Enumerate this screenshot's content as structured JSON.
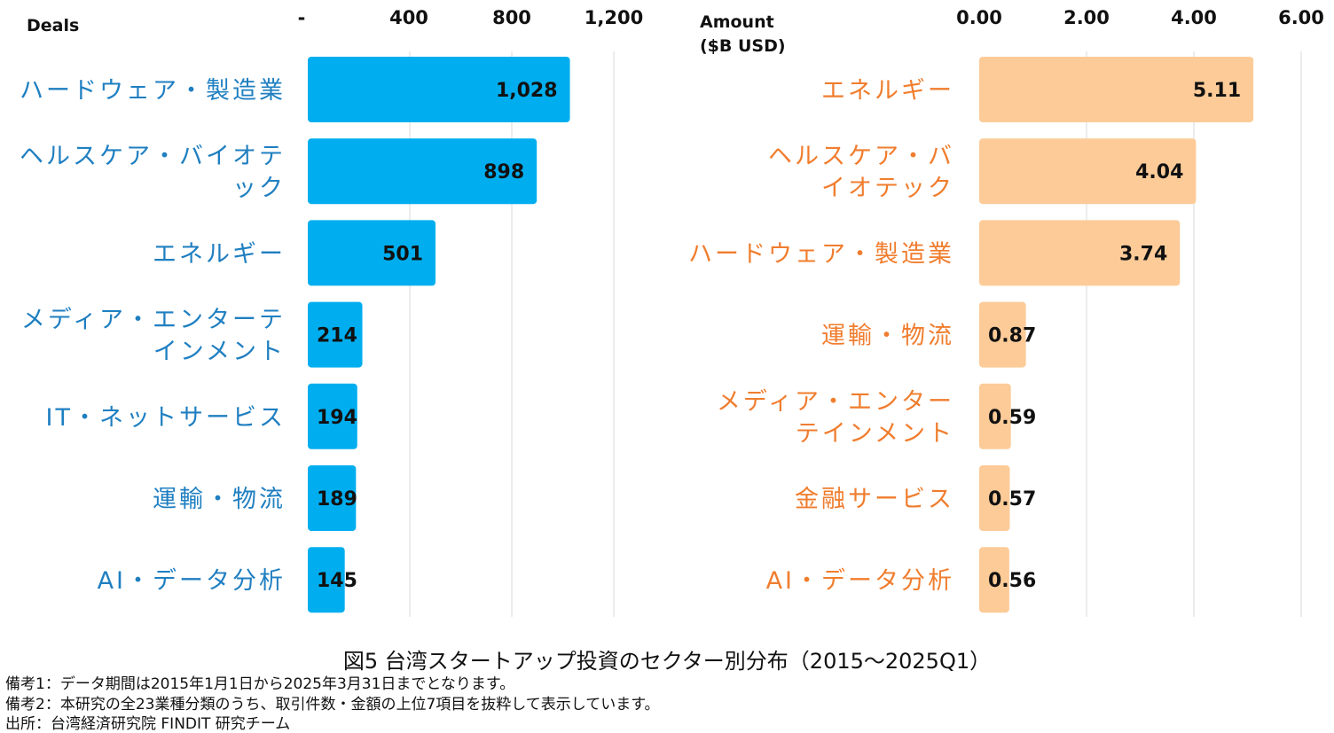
{
  "chart_data": [
    {
      "type": "bar",
      "orientation": "horizontal",
      "axis_title": "Deals",
      "x_ticks": [
        "-",
        "400",
        "800",
        "1,200"
      ],
      "xlim": [
        0,
        1200
      ],
      "categories": [
        [
          "ハードウェア・製造業"
        ],
        [
          "ヘルスケア・バイオテ",
          "ック"
        ],
        [
          "エネルギー"
        ],
        [
          "メディア・エンターテ",
          "インメント"
        ],
        [
          "IT・ネットサービス"
        ],
        [
          "運輸・物流"
        ],
        [
          "AI・データ分析"
        ]
      ],
      "values": [
        1028,
        898,
        501,
        214,
        194,
        189,
        145
      ],
      "value_labels": [
        "1,028",
        "898",
        "501",
        "214",
        "194",
        "189",
        "145"
      ],
      "bar_color": "#00aeef",
      "label_color": "#1f7fc1",
      "grid": true
    },
    {
      "type": "bar",
      "orientation": "horizontal",
      "axis_title": [
        "Amount",
        "($B USD)"
      ],
      "x_ticks": [
        "0.00",
        "2.00",
        "4.00",
        "6.00"
      ],
      "xlim": [
        0,
        6
      ],
      "categories": [
        [
          "エネルギー"
        ],
        [
          "ヘルスケア・バ",
          "イオテック"
        ],
        [
          "ハードウェア・製造業"
        ],
        [
          "運輸・物流"
        ],
        [
          "メディア・エンター",
          "テインメント"
        ],
        [
          "金融サービス"
        ],
        [
          "AI・データ分析"
        ]
      ],
      "values": [
        5.11,
        4.04,
        3.74,
        0.87,
        0.59,
        0.57,
        0.56
      ],
      "value_labels": [
        "5.11",
        "4.04",
        "3.74",
        "0.87",
        "0.59",
        "0.57",
        "0.56"
      ],
      "bar_color": "#fccb98",
      "label_color": "#f07d2e",
      "grid": true
    }
  ],
  "caption": "図5 台湾スタートアップ投資のセクター別分布（2015～2025Q1）",
  "notes": [
    "備考1：データ期間は2015年1月1日から2025年3月31日までとなります。",
    "備考2：本研究の全23業種分類のうち、取引件数・金額の上位7項目を抜粋して表示しています。",
    "出所：台湾経済研究院 FINDIT 研究チーム"
  ]
}
